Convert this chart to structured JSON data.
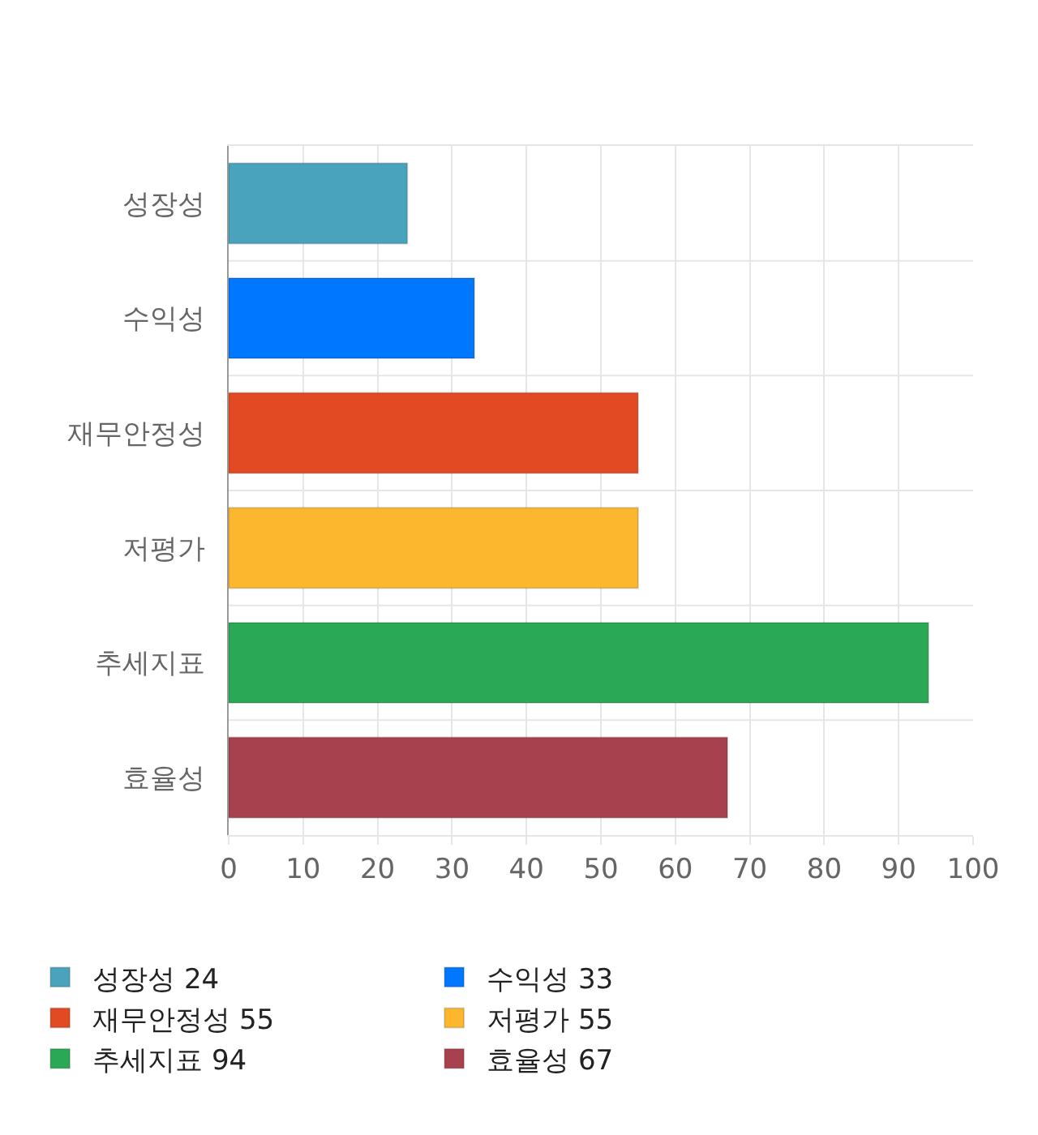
{
  "chart_data": {
    "type": "bar",
    "orientation": "horizontal",
    "categories": [
      "성장성",
      "수익성",
      "재무안정성",
      "저평가",
      "추세지표",
      "효율성"
    ],
    "series": [
      {
        "name": "성장성 24",
        "color": "#4aa3bc",
        "values": [
          24,
          null,
          null,
          null,
          null,
          null
        ]
      },
      {
        "name": "수익성 33",
        "color": "#0077ff",
        "values": [
          null,
          33,
          null,
          null,
          null,
          null
        ]
      },
      {
        "name": "재무안정성 55",
        "color": "#e24a23",
        "values": [
          null,
          null,
          55,
          null,
          null,
          null
        ]
      },
      {
        "name": "저평가 55",
        "color": "#fdb72f",
        "values": [
          null,
          null,
          null,
          55,
          null,
          null
        ]
      },
      {
        "name": "추세지표 94",
        "color": "#2aa856",
        "values": [
          null,
          null,
          null,
          null,
          94,
          null
        ]
      },
      {
        "name": "효율성 67",
        "color": "#a8414e",
        "values": [
          null,
          null,
          null,
          null,
          null,
          67
        ]
      }
    ],
    "xlim": [
      0,
      100
    ],
    "xticks": [
      0,
      10,
      20,
      30,
      40,
      50,
      60,
      70,
      80,
      90,
      100
    ],
    "grid": true,
    "legend": "bottom"
  }
}
